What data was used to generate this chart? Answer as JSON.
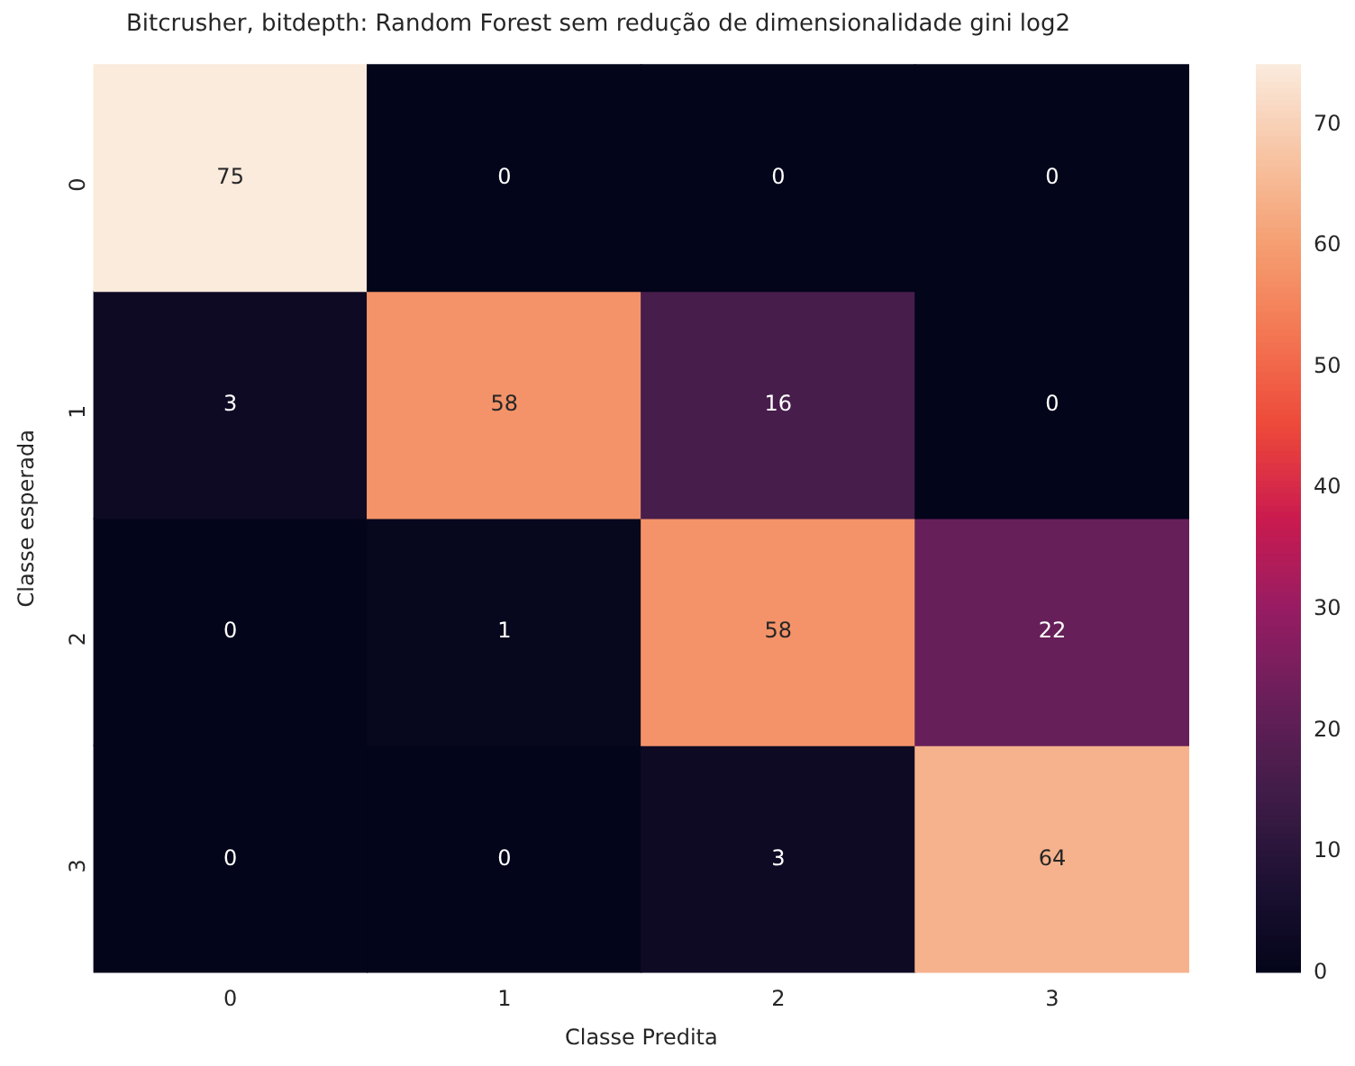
{
  "chart_data": {
    "type": "heatmap",
    "title": "Bitcrusher, bitdepth: Random Forest sem redução de dimensionalidade gini log2",
    "xlabel": "Classe Predita",
    "ylabel": "Classe esperada",
    "categories": [
      "0",
      "1",
      "2",
      "3"
    ],
    "y_categories": [
      "0",
      "1",
      "2",
      "3"
    ],
    "cells": [
      [
        75,
        0,
        0,
        0
      ],
      [
        3,
        58,
        16,
        0
      ],
      [
        0,
        1,
        58,
        22
      ],
      [
        0,
        0,
        3,
        64
      ]
    ],
    "clim": [
      0,
      75
    ],
    "cticks": [
      0,
      10,
      20,
      30,
      40,
      50,
      60,
      70
    ],
    "data_labels": true
  }
}
